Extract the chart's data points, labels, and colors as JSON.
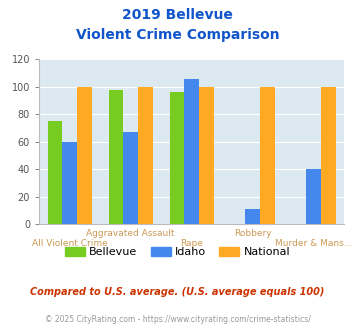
{
  "title_line1": "2019 Bellevue",
  "title_line2": "Violent Crime Comparison",
  "categories": [
    "All Violent Crime",
    "Aggravated Assault",
    "Rape",
    "Robbery",
    "Murder & Mans..."
  ],
  "top_labels": [
    "",
    "Aggravated Assault",
    "",
    "Robbery",
    ""
  ],
  "bot_labels": [
    "All Violent Crime",
    "",
    "Rape",
    "",
    "Murder & Mans..."
  ],
  "series": {
    "Bellevue": [
      75,
      98,
      96,
      null,
      null
    ],
    "Idaho": [
      60,
      67,
      106,
      11,
      40
    ],
    "National": [
      100,
      100,
      100,
      100,
      100
    ]
  },
  "colors": {
    "Bellevue": "#77cc22",
    "Idaho": "#4488ee",
    "National": "#ffaa22"
  },
  "ylim": [
    0,
    120
  ],
  "yticks": [
    0,
    20,
    40,
    60,
    80,
    100,
    120
  ],
  "plot_bg": "#dce9f0",
  "title_color": "#1155cc",
  "axis_label_color": "#cc9955",
  "legend_labels": [
    "Bellevue",
    "Idaho",
    "National"
  ],
  "footnote1": "Compared to U.S. average. (U.S. average equals 100)",
  "footnote2": "© 2025 CityRating.com - https://www.cityrating.com/crime-statistics/",
  "footnote1_color": "#cc3300",
  "footnote2_color": "#999999"
}
